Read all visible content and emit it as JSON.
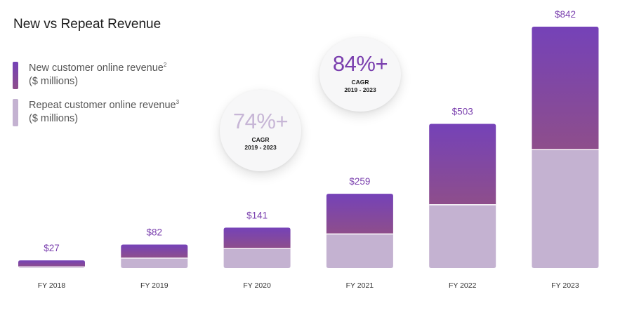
{
  "title": "New vs Repeat Revenue",
  "legend": {
    "new": {
      "line1": "New customer online revenue",
      "sup": "2",
      "line2": "($ millions)",
      "color": "#7b46b3"
    },
    "repeat": {
      "line1": "Repeat customer online revenue",
      "sup": "3",
      "line2": "($ millions)",
      "color": "#c4b2d1"
    }
  },
  "cagr_badges": [
    {
      "value": "74%+",
      "label": "CAGR",
      "period": "2019 - 2023",
      "color": "#c7b6d6"
    },
    {
      "value": "84%+",
      "label": "CAGR",
      "period": "2019 - 2023",
      "color": "#7a3fae"
    }
  ],
  "chart_data": {
    "type": "bar",
    "stacked": true,
    "categories": [
      "FY 2018",
      "FY 2019",
      "FY 2020",
      "FY 2021",
      "FY 2022",
      "FY 2023"
    ],
    "totals": [
      27,
      82,
      141,
      259,
      503,
      842
    ],
    "total_labels": [
      "$27",
      "$82",
      "$141",
      "$259",
      "$503",
      "$842"
    ],
    "series": [
      {
        "name": "Repeat customer online revenue",
        "values": [
          4,
          35,
          68,
          119,
          221,
          413
        ],
        "color": "#c4b2d1"
      },
      {
        "name": "New customer online revenue",
        "values": [
          23,
          47,
          73,
          140,
          282,
          429
        ],
        "color_top": "#7542b8",
        "color_bottom": "#8e4e8b"
      }
    ],
    "ylim": [
      0,
      842
    ],
    "grid": false
  }
}
